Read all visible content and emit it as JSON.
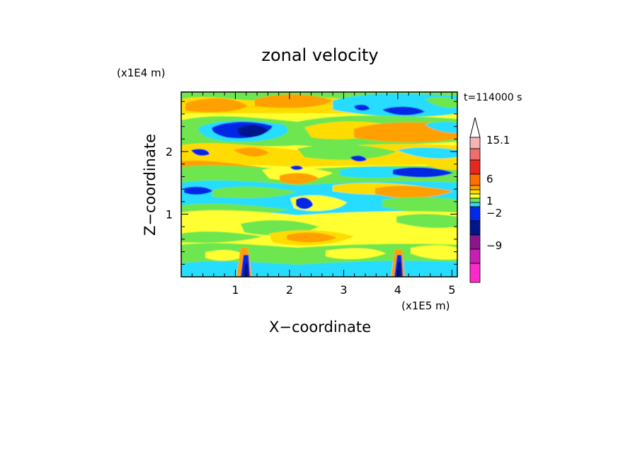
{
  "chart_data": {
    "type": "heatmap",
    "title": "zonal velocity",
    "xlabel": "X−coordinate",
    "ylabel": "Z−coordinate",
    "x_scale_label": "(x1E5 m)",
    "y_scale_label": "(x1E4 m)",
    "time_label": "t=114000 s",
    "x_ticks": [
      "1",
      "2",
      "3",
      "4",
      "5"
    ],
    "x_tick_values": [
      1,
      2,
      3,
      4,
      5
    ],
    "y_ticks": [
      "1",
      "2"
    ],
    "y_tick_values": [
      1,
      2
    ],
    "xlim": [
      0,
      5.1
    ],
    "ylim": [
      0,
      2.95
    ],
    "colorbar": {
      "tick_labels": [
        "15.1",
        "6",
        "1",
        "−2",
        "−9"
      ],
      "levels_top_to_bottom": [
        {
          "color": "#ffffff"
        },
        {
          "color": "#f7b4b4"
        },
        {
          "color": "#ee6e6e"
        },
        {
          "color": "#e8281e"
        },
        {
          "color": "#ff6e00"
        },
        {
          "color": "#ffa000"
        },
        {
          "color": "#ffdc00"
        },
        {
          "color": "#ffff32"
        },
        {
          "color": "#6ee650"
        },
        {
          "color": "#28dcff"
        },
        {
          "color": "#0028e6"
        },
        {
          "color": "#00148c"
        },
        {
          "color": "#8c148c"
        },
        {
          "color": "#c81eb4"
        },
        {
          "color": "#ff28c8"
        }
      ]
    },
    "field_summary": [
      {
        "z_range": [
          2.6,
          2.95
        ],
        "dominant": "orange / yellow with cyan patches"
      },
      {
        "z_range": [
          2.3,
          2.6
        ],
        "dominant": "dark blue core near x=1.2–1.6, orange to the east"
      },
      {
        "z_range": [
          1.9,
          2.3
        ],
        "dominant": "yellow, orange and green bands"
      },
      {
        "z_range": [
          1.3,
          1.9
        ],
        "dominant": "green / cyan with blue cores near x=2.3 and x=4.4"
      },
      {
        "z_range": [
          0.5,
          1.3
        ],
        "dominant": "yellow / green with orange near x=2.3"
      },
      {
        "z_range": [
          0,
          0.5
        ],
        "dominant": "green / cyan with mountain-wave features near x=1.2 and x=4.0"
      }
    ]
  }
}
